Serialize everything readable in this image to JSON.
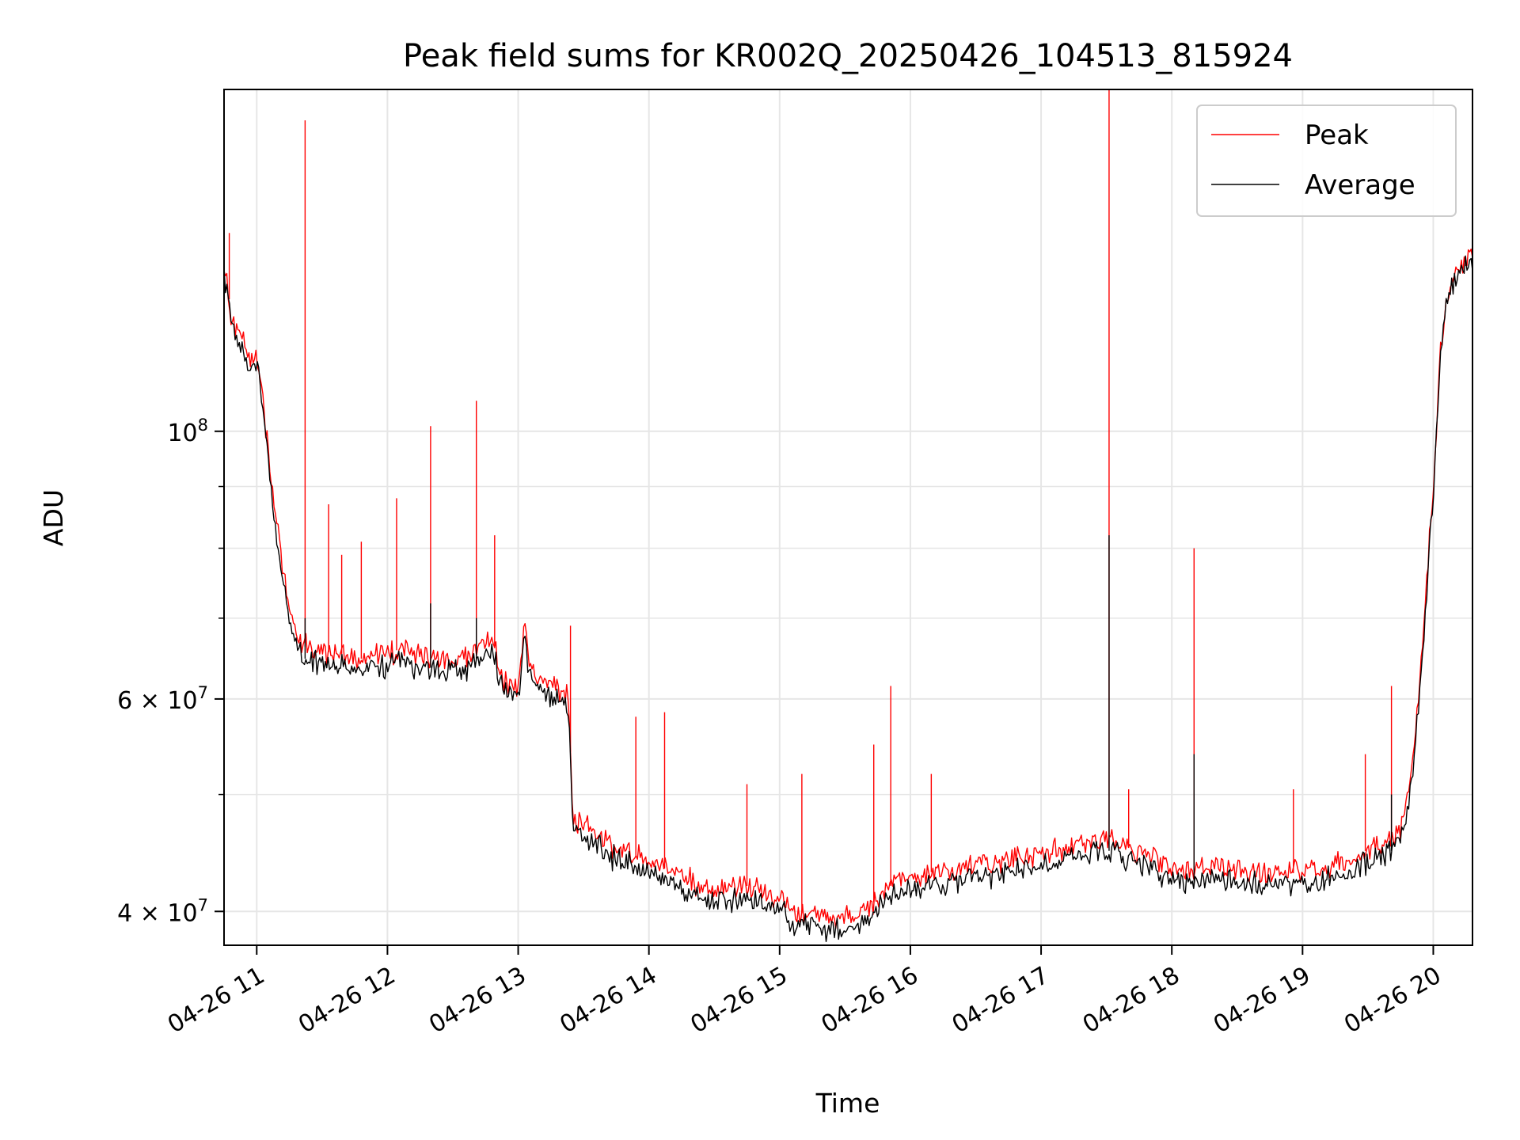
{
  "chart_data": {
    "type": "line",
    "title": "Peak field sums for KR002Q_20250426_104513_815924",
    "xlabel": "Time",
    "ylabel": "ADU",
    "yscale": "log",
    "grid": true,
    "legend_position": "top-right",
    "xlim": [
      10.75,
      20.3
    ],
    "ylim": [
      37500000,
      192000000
    ],
    "x_ticks": [
      11,
      12,
      13,
      14,
      15,
      16,
      17,
      18,
      19,
      20
    ],
    "x_tick_labels": [
      "04-26 11",
      "04-26 12",
      "04-26 13",
      "04-26 14",
      "04-26 15",
      "04-26 16",
      "04-26 17",
      "04-26 18",
      "04-26 19",
      "04-26 20"
    ],
    "y_major_ticks": [
      {
        "value": 40000000,
        "label": "4 × 10⁷",
        "mant": "4",
        "exp": "7"
      },
      {
        "value": 60000000,
        "label": "6 × 10⁷",
        "mant": "6",
        "exp": "7"
      },
      {
        "value": 100000000,
        "label": "10⁸",
        "mant": "",
        "exp": "8"
      }
    ],
    "y_minor_ticks": [
      50000000,
      70000000,
      80000000,
      90000000
    ],
    "series": [
      {
        "name": "Peak",
        "color": "#ff0000",
        "x": [
          10.75,
          10.77,
          10.8,
          10.85,
          10.9,
          10.95,
          11.0,
          11.05,
          11.1,
          11.15,
          11.2,
          11.25,
          11.3,
          11.35,
          11.4,
          11.5,
          11.6,
          11.7,
          11.8,
          11.9,
          12.0,
          12.1,
          12.2,
          12.3,
          12.4,
          12.5,
          12.6,
          12.7,
          12.8,
          12.85,
          12.9,
          13.0,
          13.05,
          13.1,
          13.2,
          13.3,
          13.38,
          13.42,
          13.5,
          13.6,
          13.7,
          13.8,
          13.9,
          14.0,
          14.1,
          14.2,
          14.3,
          14.4,
          14.5,
          14.6,
          14.7,
          14.8,
          14.9,
          15.0,
          15.1,
          15.2,
          15.3,
          15.4,
          15.5,
          15.6,
          15.7,
          15.8,
          15.9,
          16.0,
          16.1,
          16.2,
          16.3,
          16.4,
          16.5,
          16.6,
          16.7,
          16.8,
          16.9,
          17.0,
          17.1,
          17.2,
          17.3,
          17.4,
          17.5,
          17.6,
          17.7,
          17.8,
          17.9,
          18.0,
          18.1,
          18.2,
          18.3,
          18.4,
          18.5,
          18.6,
          18.7,
          18.8,
          18.9,
          19.0,
          19.1,
          19.2,
          19.3,
          19.4,
          19.5,
          19.6,
          19.7,
          19.75,
          19.8,
          19.85,
          19.9,
          19.95,
          20.0,
          20.03,
          20.06,
          20.1,
          20.15,
          20.2,
          20.25,
          20.3
        ],
        "y": [
          137000000,
          134000000,
          126000000,
          121000000,
          118000000,
          114000000,
          116000000,
          105000000,
          93000000,
          84000000,
          77000000,
          71000000,
          68000000,
          66500000,
          66000000,
          66000000,
          65200000,
          65500000,
          64800000,
          65000000,
          65500000,
          66000000,
          65000000,
          65200000,
          64800000,
          64500000,
          65000000,
          66500000,
          67500000,
          64000000,
          62000000,
          61500000,
          69000000,
          63000000,
          61500000,
          61200000,
          61000000,
          47500000,
          47000000,
          46500000,
          45500000,
          45000000,
          44500000,
          44000000,
          43500000,
          43000000,
          42500000,
          42000000,
          41500000,
          41500000,
          42000000,
          42000000,
          41500000,
          41000000,
          40000000,
          39800000,
          39500000,
          39500000,
          39500000,
          39800000,
          40500000,
          41500000,
          42500000,
          43000000,
          43000000,
          43200000,
          43300000,
          43500000,
          43600000,
          43800000,
          43900000,
          44100000,
          44200000,
          44500000,
          44800000,
          45200000,
          45500000,
          45700000,
          46000000,
          45500000,
          45000000,
          44500000,
          44000000,
          43500000,
          43000000,
          43200000,
          43400000,
          43300000,
          43200000,
          43100000,
          43000000,
          43000000,
          43000000,
          43100000,
          43300000,
          43500000,
          44000000,
          44500000,
          45000000,
          45500000,
          46000000,
          47000000,
          49000000,
          54000000,
          62000000,
          75000000,
          90000000,
          104000000,
          118000000,
          128000000,
          133000000,
          136000000,
          138000000,
          140000000
        ],
        "spikes": [
          {
            "x": 10.79,
            "y": 146000000
          },
          {
            "x": 11.37,
            "y": 181000000
          },
          {
            "x": 11.55,
            "y": 87000000
          },
          {
            "x": 11.65,
            "y": 79000000
          },
          {
            "x": 11.8,
            "y": 81000000
          },
          {
            "x": 12.07,
            "y": 88000000
          },
          {
            "x": 12.33,
            "y": 101000000
          },
          {
            "x": 12.68,
            "y": 106000000
          },
          {
            "x": 12.82,
            "y": 82000000
          },
          {
            "x": 13.4,
            "y": 69000000
          },
          {
            "x": 13.9,
            "y": 58000000
          },
          {
            "x": 14.12,
            "y": 58500000
          },
          {
            "x": 14.75,
            "y": 51000000
          },
          {
            "x": 15.17,
            "y": 52000000
          },
          {
            "x": 15.72,
            "y": 55000000
          },
          {
            "x": 15.85,
            "y": 61500000
          },
          {
            "x": 16.16,
            "y": 52000000
          },
          {
            "x": 17.52,
            "y": 192000000
          },
          {
            "x": 17.67,
            "y": 50500000
          },
          {
            "x": 18.17,
            "y": 80000000
          },
          {
            "x": 18.93,
            "y": 50500000
          },
          {
            "x": 19.48,
            "y": 54000000
          },
          {
            "x": 19.68,
            "y": 61500000
          }
        ]
      },
      {
        "name": "Average",
        "color": "#000000",
        "x": [
          10.75,
          10.77,
          10.8,
          10.85,
          10.9,
          10.95,
          11.0,
          11.05,
          11.1,
          11.15,
          11.2,
          11.25,
          11.3,
          11.35,
          11.4,
          11.5,
          11.6,
          11.7,
          11.8,
          11.9,
          12.0,
          12.1,
          12.2,
          12.3,
          12.4,
          12.5,
          12.6,
          12.7,
          12.8,
          12.85,
          12.9,
          13.0,
          13.05,
          13.1,
          13.2,
          13.3,
          13.38,
          13.42,
          13.5,
          13.6,
          13.7,
          13.8,
          13.9,
          14.0,
          14.1,
          14.2,
          14.3,
          14.4,
          14.5,
          14.6,
          14.7,
          14.8,
          14.9,
          15.0,
          15.1,
          15.2,
          15.3,
          15.4,
          15.5,
          15.6,
          15.7,
          15.8,
          15.9,
          16.0,
          16.1,
          16.2,
          16.3,
          16.4,
          16.5,
          16.6,
          16.7,
          16.8,
          16.9,
          17.0,
          17.1,
          17.2,
          17.3,
          17.4,
          17.5,
          17.6,
          17.7,
          17.8,
          17.9,
          18.0,
          18.1,
          18.2,
          18.3,
          18.4,
          18.5,
          18.6,
          18.7,
          18.8,
          18.9,
          19.0,
          19.1,
          19.2,
          19.3,
          19.4,
          19.5,
          19.6,
          19.7,
          19.75,
          19.8,
          19.85,
          19.9,
          19.95,
          20.0,
          20.03,
          20.06,
          20.1,
          20.15,
          20.2,
          20.25,
          20.3
        ],
        "y": [
          135000000,
          132000000,
          124000000,
          119000000,
          116000000,
          112000000,
          114000000,
          103000000,
          91000000,
          82000000,
          75000000,
          69500000,
          66500000,
          65000000,
          64500000,
          64500000,
          63800000,
          64000000,
          63400000,
          63600000,
          64000000,
          64500000,
          63600000,
          63800000,
          63400000,
          63100000,
          63600000,
          65000000,
          66000000,
          62700000,
          60800000,
          60300000,
          67500000,
          61700000,
          60300000,
          60000000,
          59800000,
          46500000,
          46000000,
          45500000,
          44500000,
          44000000,
          43500000,
          43000000,
          42500000,
          42000000,
          41500000,
          41000000,
          40600000,
          40600000,
          41000000,
          41000000,
          40600000,
          40100000,
          39100000,
          38900000,
          38600000,
          38600000,
          38600000,
          38900000,
          39600000,
          40600000,
          41500000,
          42000000,
          42000000,
          42200000,
          42300000,
          42500000,
          42600000,
          42800000,
          42900000,
          43100000,
          43200000,
          43500000,
          43800000,
          44200000,
          44500000,
          44700000,
          45000000,
          44500000,
          44000000,
          43500000,
          43000000,
          42500000,
          42000000,
          42200000,
          42400000,
          42300000,
          42200000,
          42100000,
          42000000,
          42000000,
          42000000,
          42100000,
          42300000,
          42500000,
          43000000,
          43500000,
          44000000,
          44500000,
          45000000,
          46000000,
          48000000,
          53000000,
          61000000,
          74000000,
          89000000,
          103000000,
          117000000,
          127000000,
          132000000,
          135000000,
          137000000,
          139000000
        ],
        "spikes": [
          {
            "x": 11.37,
            "y": 70000000
          },
          {
            "x": 12.33,
            "y": 72000000
          },
          {
            "x": 12.68,
            "y": 70000000
          },
          {
            "x": 17.52,
            "y": 82000000
          },
          {
            "x": 18.17,
            "y": 54000000
          },
          {
            "x": 19.68,
            "y": 50000000
          }
        ]
      }
    ]
  }
}
